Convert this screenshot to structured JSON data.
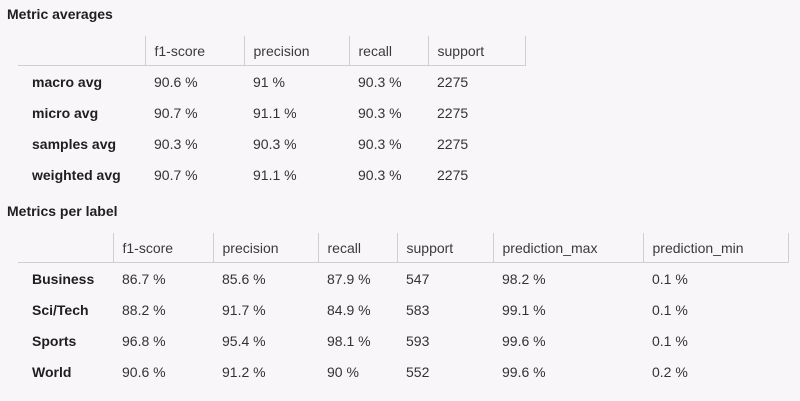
{
  "averages": {
    "title": "Metric averages",
    "columns": [
      "f1-score",
      "precision",
      "recall",
      "support"
    ],
    "rows": [
      {
        "label": "macro avg",
        "values": [
          "90.6 %",
          "91 %",
          "90.3 %",
          "2275"
        ]
      },
      {
        "label": "micro avg",
        "values": [
          "90.7 %",
          "91.1 %",
          "90.3 %",
          "2275"
        ]
      },
      {
        "label": "samples avg",
        "values": [
          "90.3 %",
          "90.3 %",
          "90.3 %",
          "2275"
        ]
      },
      {
        "label": "weighted avg",
        "values": [
          "90.7 %",
          "91.1 %",
          "90.3 %",
          "2275"
        ]
      }
    ]
  },
  "per_label": {
    "title": "Metrics per label",
    "columns": [
      "f1-score",
      "precision",
      "recall",
      "support",
      "prediction_max",
      "prediction_min"
    ],
    "rows": [
      {
        "label": "Business",
        "values": [
          "86.7 %",
          "85.6 %",
          "87.9 %",
          "547",
          "98.2 %",
          "0.1 %"
        ]
      },
      {
        "label": "Sci/Tech",
        "values": [
          "88.2 %",
          "91.7 %",
          "84.9 %",
          "583",
          "99.1 %",
          "0.1 %"
        ]
      },
      {
        "label": "Sports",
        "values": [
          "96.8 %",
          "95.4 %",
          "98.1 %",
          "593",
          "99.6 %",
          "0.1 %"
        ]
      },
      {
        "label": "World",
        "values": [
          "90.6 %",
          "91.2 %",
          "90 %",
          "552",
          "99.6 %",
          "0.2 %"
        ]
      }
    ]
  }
}
